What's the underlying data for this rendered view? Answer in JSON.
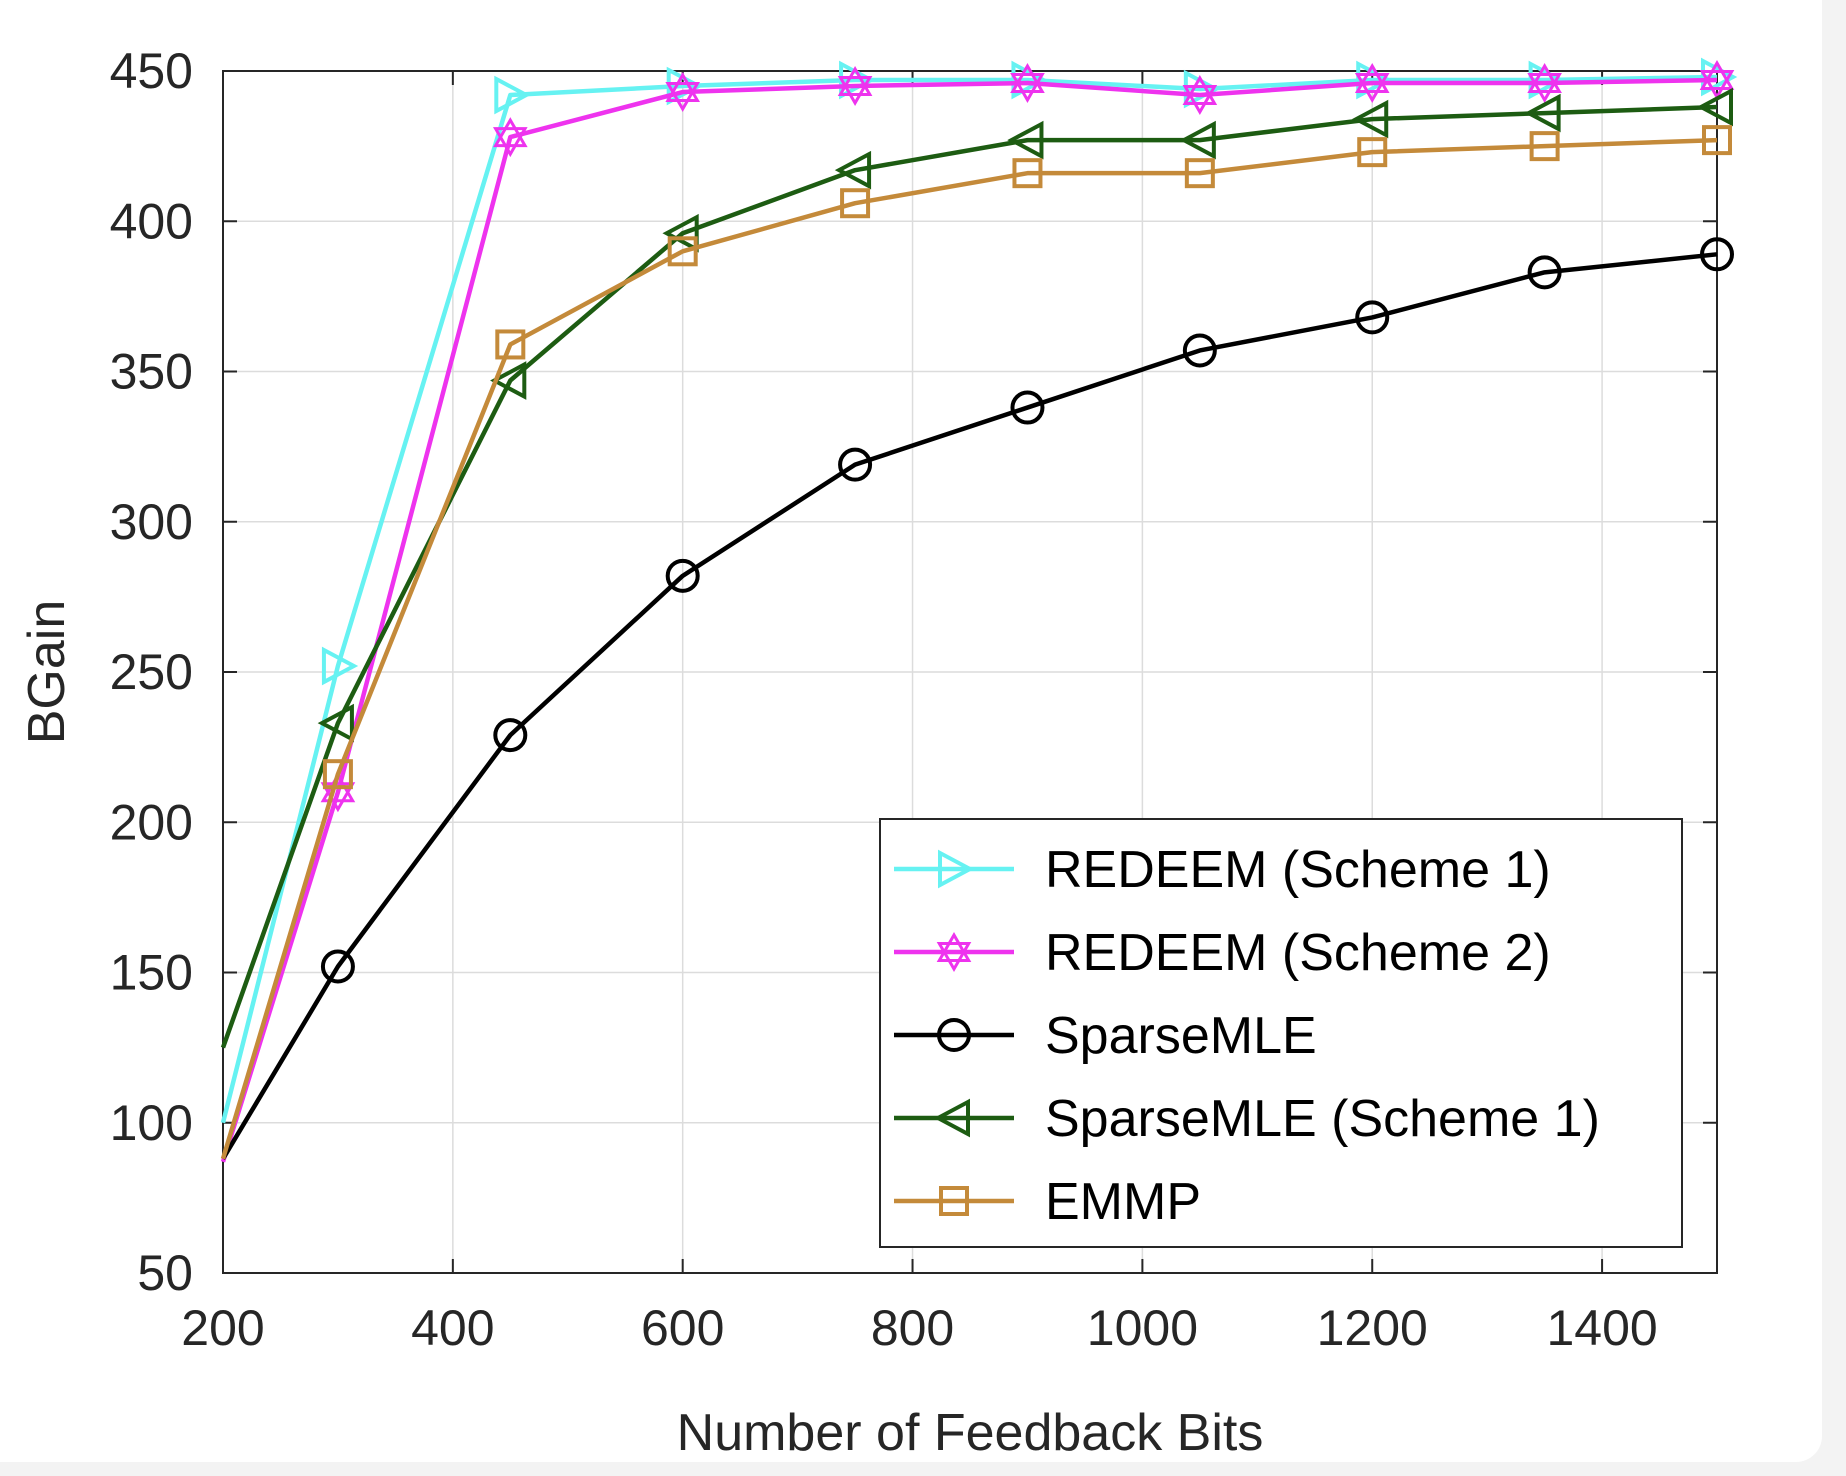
{
  "chart_data": {
    "type": "line",
    "title": "",
    "xlabel": "Number of Feedback Bits",
    "ylabel": "BGain",
    "xlim": [
      200,
      1500
    ],
    "ylim": [
      50,
      450
    ],
    "xticks": [
      200,
      400,
      600,
      800,
      1000,
      1200,
      1400
    ],
    "yticks": [
      50,
      100,
      150,
      200,
      250,
      300,
      350,
      400,
      450
    ],
    "grid": true,
    "legend_position": "bottom-right",
    "x": [
      200,
      300,
      450,
      600,
      750,
      900,
      1050,
      1200,
      1350,
      1500
    ],
    "series": [
      {
        "name": "REDEEM (Scheme 1)",
        "color": "#66f2f2",
        "marker": "triangle-right",
        "values": [
          100,
          252,
          442,
          445,
          447,
          447,
          444,
          447,
          447,
          448
        ]
      },
      {
        "name": "REDEEM (Scheme 2)",
        "color": "#ee33ee",
        "marker": "hexagram",
        "values": [
          87,
          210,
          428,
          443,
          445,
          446,
          442,
          446,
          446,
          447
        ]
      },
      {
        "name": "SparseMLE",
        "color": "#000000",
        "marker": "circle",
        "values": [
          88,
          152,
          229,
          282,
          319,
          338,
          357,
          368,
          383,
          389
        ]
      },
      {
        "name": "SparseMLE (Scheme 1)",
        "color": "#1d5c12",
        "marker": "triangle-left",
        "values": [
          125,
          233,
          347,
          396,
          417,
          427,
          427,
          434,
          436,
          438
        ]
      },
      {
        "name": "EMMP",
        "color": "#c48a3a",
        "marker": "square",
        "values": [
          88,
          216,
          359,
          390,
          406,
          416,
          416,
          423,
          425,
          427
        ]
      }
    ]
  }
}
